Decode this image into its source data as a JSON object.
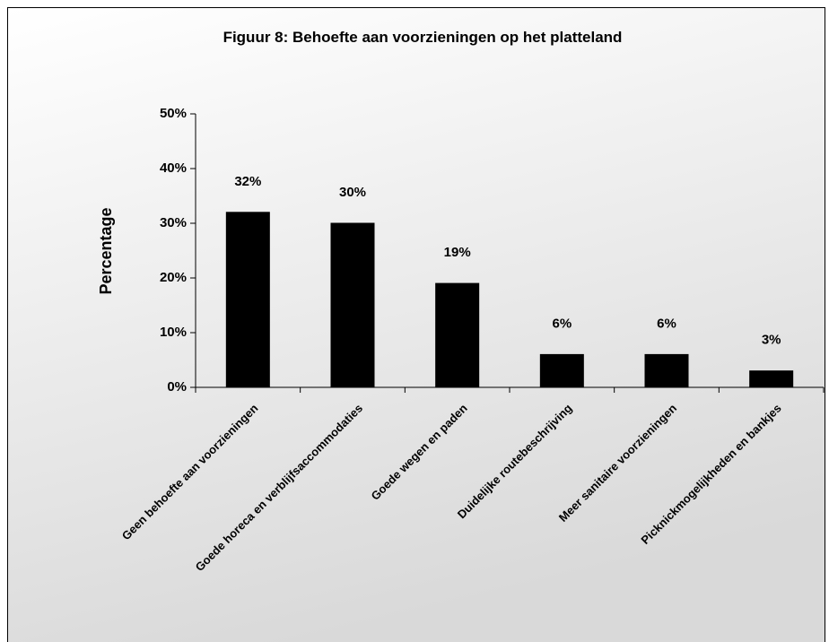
{
  "chart_data": {
    "type": "bar",
    "title": "Figuur 8: Behoefte aan voorzieningen op het platteland",
    "y_label": "Percentage",
    "categories": [
      "Geen behoefte aan voorzieningen",
      "Goede horeca en verblijfsaccommodaties",
      "Goede wegen en paden",
      "Duidelijke routebeschrijving",
      "Meer sanitaire voorzieningen",
      "Picknickmogelijkheden en bankjes"
    ],
    "values": [
      32,
      30,
      19,
      6,
      6,
      3
    ],
    "value_labels": [
      "32%",
      "30%",
      "19%",
      "6%",
      "6%",
      "3%"
    ],
    "color": "#000000",
    "ylim": [
      0,
      50
    ],
    "yticks": [
      {
        "value": 0,
        "label": "0%"
      },
      {
        "value": 10,
        "label": "10%"
      },
      {
        "value": 20,
        "label": "20%"
      },
      {
        "value": 30,
        "label": "30%"
      },
      {
        "value": 40,
        "label": "40%"
      },
      {
        "value": 50,
        "label": "50%"
      }
    ],
    "grid": false
  }
}
